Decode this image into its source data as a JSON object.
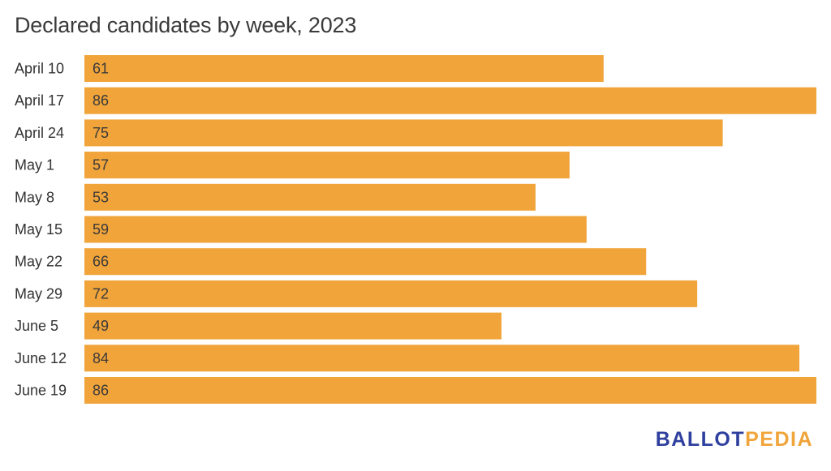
{
  "title": "Declared candidates by week, 2023",
  "chart_data": {
    "type": "bar",
    "orientation": "horizontal",
    "title": "Declared candidates by week, 2023",
    "categories": [
      "April 10",
      "April 17",
      "April 24",
      "May 1",
      "May 8",
      "May 15",
      "May 22",
      "May 29",
      "June 5",
      "June 12",
      "June 19"
    ],
    "values": [
      61,
      86,
      75,
      57,
      53,
      59,
      66,
      72,
      49,
      84,
      86
    ],
    "xlim": [
      0,
      86
    ],
    "grid": false,
    "legend": "none",
    "data_labels": "inside-left",
    "bar_color": "#f0a43a"
  },
  "logo": {
    "part1": "BALLOT",
    "part2": "PEDIA",
    "color1": "#2e3f9e",
    "color2": "#f0a43a"
  }
}
